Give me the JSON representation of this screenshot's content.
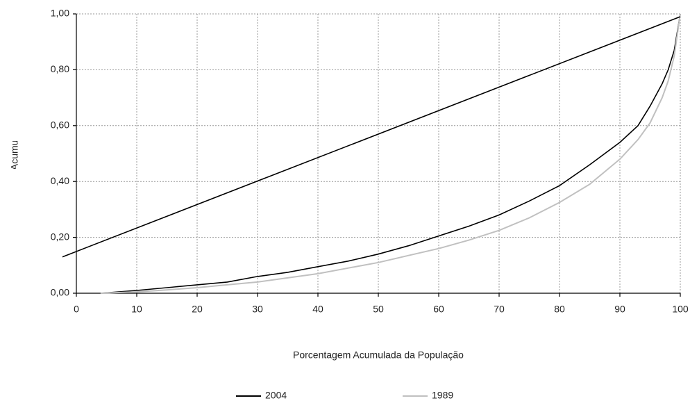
{
  "chart_data": {
    "type": "line",
    "xlabel": "Porcentagem Acumulada da População",
    "ylabel": "Porcentagem Acumulada da Renda",
    "xlim": [
      0,
      100
    ],
    "ylim": [
      0,
      1
    ],
    "xticks": [
      0,
      10,
      20,
      30,
      40,
      50,
      60,
      70,
      80,
      90,
      100
    ],
    "yticks": [
      {
        "value": 0,
        "label": "0,00"
      },
      {
        "value": 0.2,
        "label": "0,20"
      },
      {
        "value": 0.4,
        "label": "0,40"
      },
      {
        "value": 0.6,
        "label": "0,60"
      },
      {
        "value": 0.8,
        "label": "0,80"
      },
      {
        "value": 1,
        "label": "1,00"
      }
    ],
    "grid": true,
    "legend": "bottom",
    "series": [
      {
        "name": "2004",
        "color": "#000000",
        "x": [
          4,
          10,
          15,
          20,
          25,
          30,
          35,
          40,
          45,
          50,
          55,
          60,
          65,
          70,
          75,
          80,
          85,
          90,
          93,
          95,
          97,
          98,
          99,
          100
        ],
        "values": [
          0,
          0.01,
          0.02,
          0.03,
          0.04,
          0.06,
          0.075,
          0.095,
          0.115,
          0.14,
          0.17,
          0.205,
          0.24,
          0.28,
          0.33,
          0.385,
          0.46,
          0.54,
          0.6,
          0.67,
          0.75,
          0.8,
          0.87,
          1.0
        ]
      },
      {
        "name": "1989",
        "color": "#c0c0c0",
        "x": [
          4,
          10,
          15,
          20,
          25,
          30,
          35,
          40,
          45,
          50,
          55,
          60,
          65,
          70,
          75,
          80,
          85,
          90,
          93,
          95,
          97,
          98,
          99,
          100
        ],
        "values": [
          0,
          0.005,
          0.012,
          0.02,
          0.03,
          0.04,
          0.055,
          0.07,
          0.09,
          0.11,
          0.135,
          0.16,
          0.19,
          0.225,
          0.27,
          0.325,
          0.39,
          0.48,
          0.55,
          0.61,
          0.7,
          0.76,
          0.85,
          1.0
        ]
      },
      {
        "color": "#000000",
        "x": [
          -2.3,
          100
        ],
        "values": [
          0.13,
          0.99
        ]
      }
    ]
  }
}
